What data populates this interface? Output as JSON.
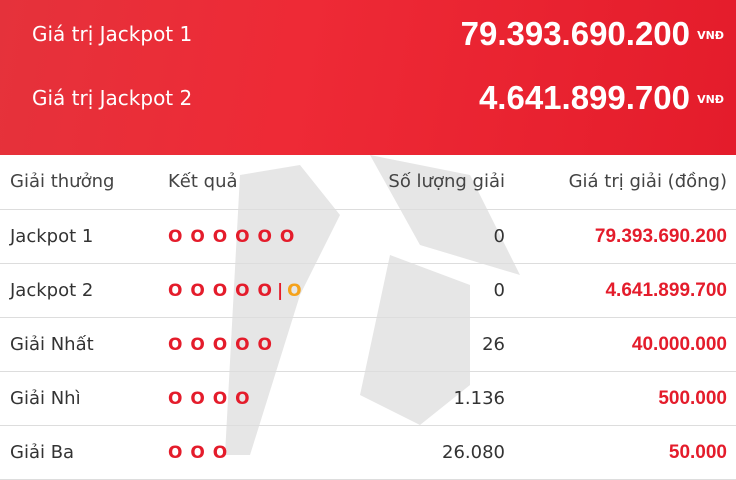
{
  "jackpots": [
    {
      "label": "Giá trị Jackpot 1",
      "value": "79.393.690.200",
      "unit": "VNĐ"
    },
    {
      "label": "Giá trị Jackpot 2",
      "value": "4.641.899.700",
      "unit": "VNĐ"
    }
  ],
  "table": {
    "header": [
      "Giải thưởng",
      "Kết quả",
      "Số lượng giải",
      "Giá trị giải (đồng)"
    ],
    "rows": [
      {
        "name": "Jackpot 1",
        "result": "O O O O O O",
        "count": "0",
        "prize": "79.393.690.200"
      },
      {
        "name": "Jackpot 2",
        "result": "O O O O O",
        "separator": "|",
        "bonus": "O",
        "count": "0",
        "prize": "4.641.899.700"
      },
      {
        "name": "Giải Nhất",
        "result": "O O O O O",
        "count": "26",
        "prize": "40.000.000"
      },
      {
        "name": "Giải Nhì",
        "result": "O O O O",
        "count": "1.136",
        "prize": "500.000"
      },
      {
        "name": "Giải Ba",
        "result": "O O O",
        "count": "26.080",
        "prize": "50.000"
      }
    ]
  }
}
